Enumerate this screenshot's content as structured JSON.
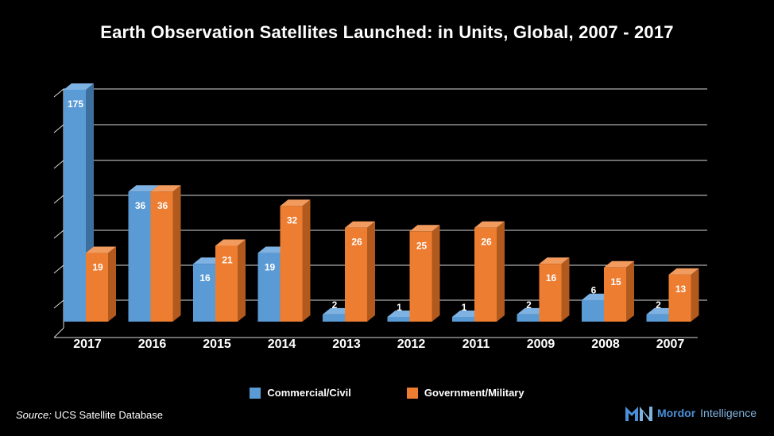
{
  "title": "Earth Observation Satellites Launched: in Units, Global, 2007 - 2017",
  "source_label": "Source:",
  "source_text": "UCS Satellite Database",
  "brand": {
    "name1": "Mordor",
    "name2": "Intelligence"
  },
  "colors": {
    "commercial": "#5b9bd5",
    "government": "#ed7d31"
  },
  "chart_data": {
    "type": "bar",
    "categories": [
      "2017",
      "2016",
      "2015",
      "2014",
      "2013",
      "2012",
      "2011",
      "2009",
      "2008",
      "2007"
    ],
    "series": [
      {
        "name": "Commercial/Civil",
        "values": [
          175,
          36,
          16,
          19,
          2,
          1,
          1,
          2,
          6,
          2
        ]
      },
      {
        "name": "Government/Military",
        "values": [
          19,
          36,
          21,
          32,
          26,
          25,
          26,
          16,
          15,
          13
        ]
      }
    ],
    "legend_position": "bottom",
    "grid": true,
    "y_axis_labels": false,
    "data_labels": true
  }
}
